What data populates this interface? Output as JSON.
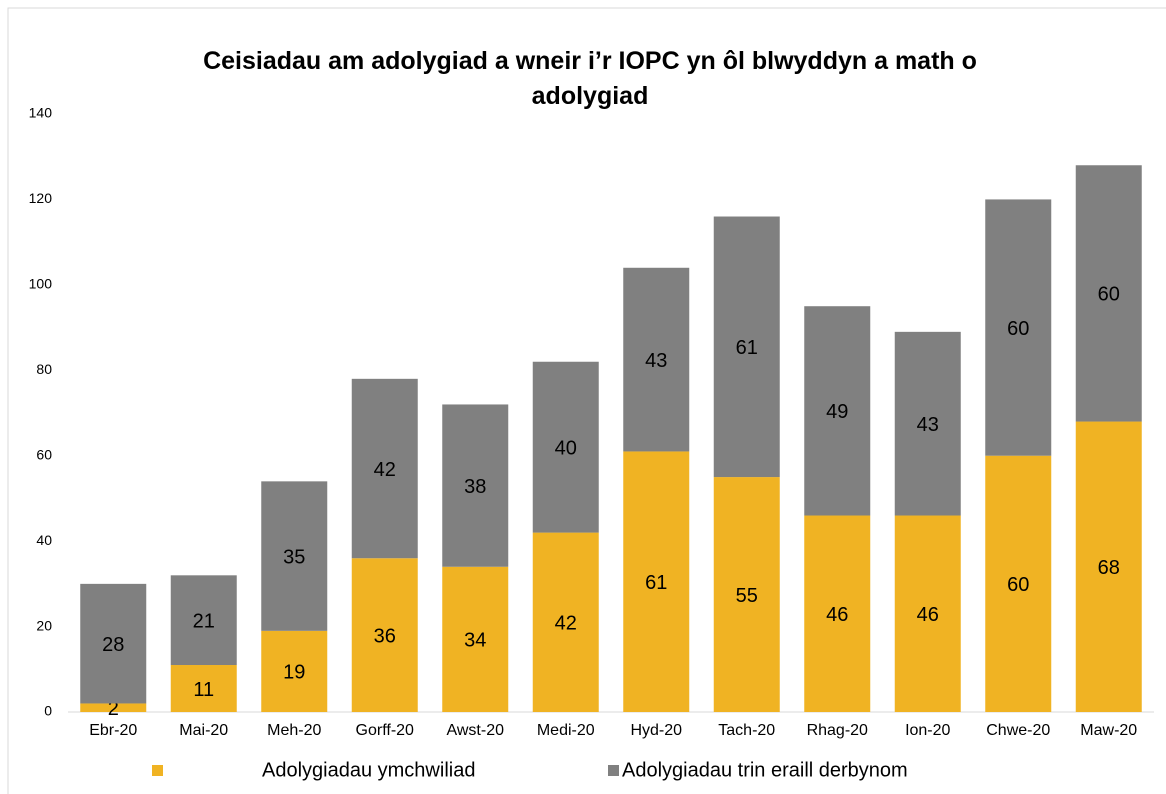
{
  "chart_data": {
    "type": "stacked_bar",
    "title": "Ceisiadau am adolygiad a wneir i’r IOPC yn ôl blwyddyn a math o adolygiad",
    "categories": [
      "Ebr-20",
      "Mai-20",
      "Meh-20",
      "Gorff-20",
      "Awst-20",
      "Medi-20",
      "Hyd-20",
      "Tach-20",
      "Rhag-20",
      "Ion-20",
      "Chwe-20",
      "Maw-20"
    ],
    "series": [
      {
        "name": "Adolygiadau ymchwiliad",
        "color": "#f0b323",
        "values": [
          2,
          11,
          19,
          36,
          34,
          42,
          61,
          55,
          46,
          46,
          60,
          68
        ]
      },
      {
        "name": "Adolygiadau trin eraill derbynom",
        "color": "#808080",
        "values": [
          28,
          21,
          35,
          42,
          38,
          40,
          43,
          61,
          49,
          43,
          60,
          60
        ]
      }
    ],
    "ylim": [
      0,
      140
    ],
    "yticks": [
      0,
      20,
      40,
      60,
      80,
      100,
      120,
      140
    ],
    "grid": false,
    "legend": "bottom"
  }
}
